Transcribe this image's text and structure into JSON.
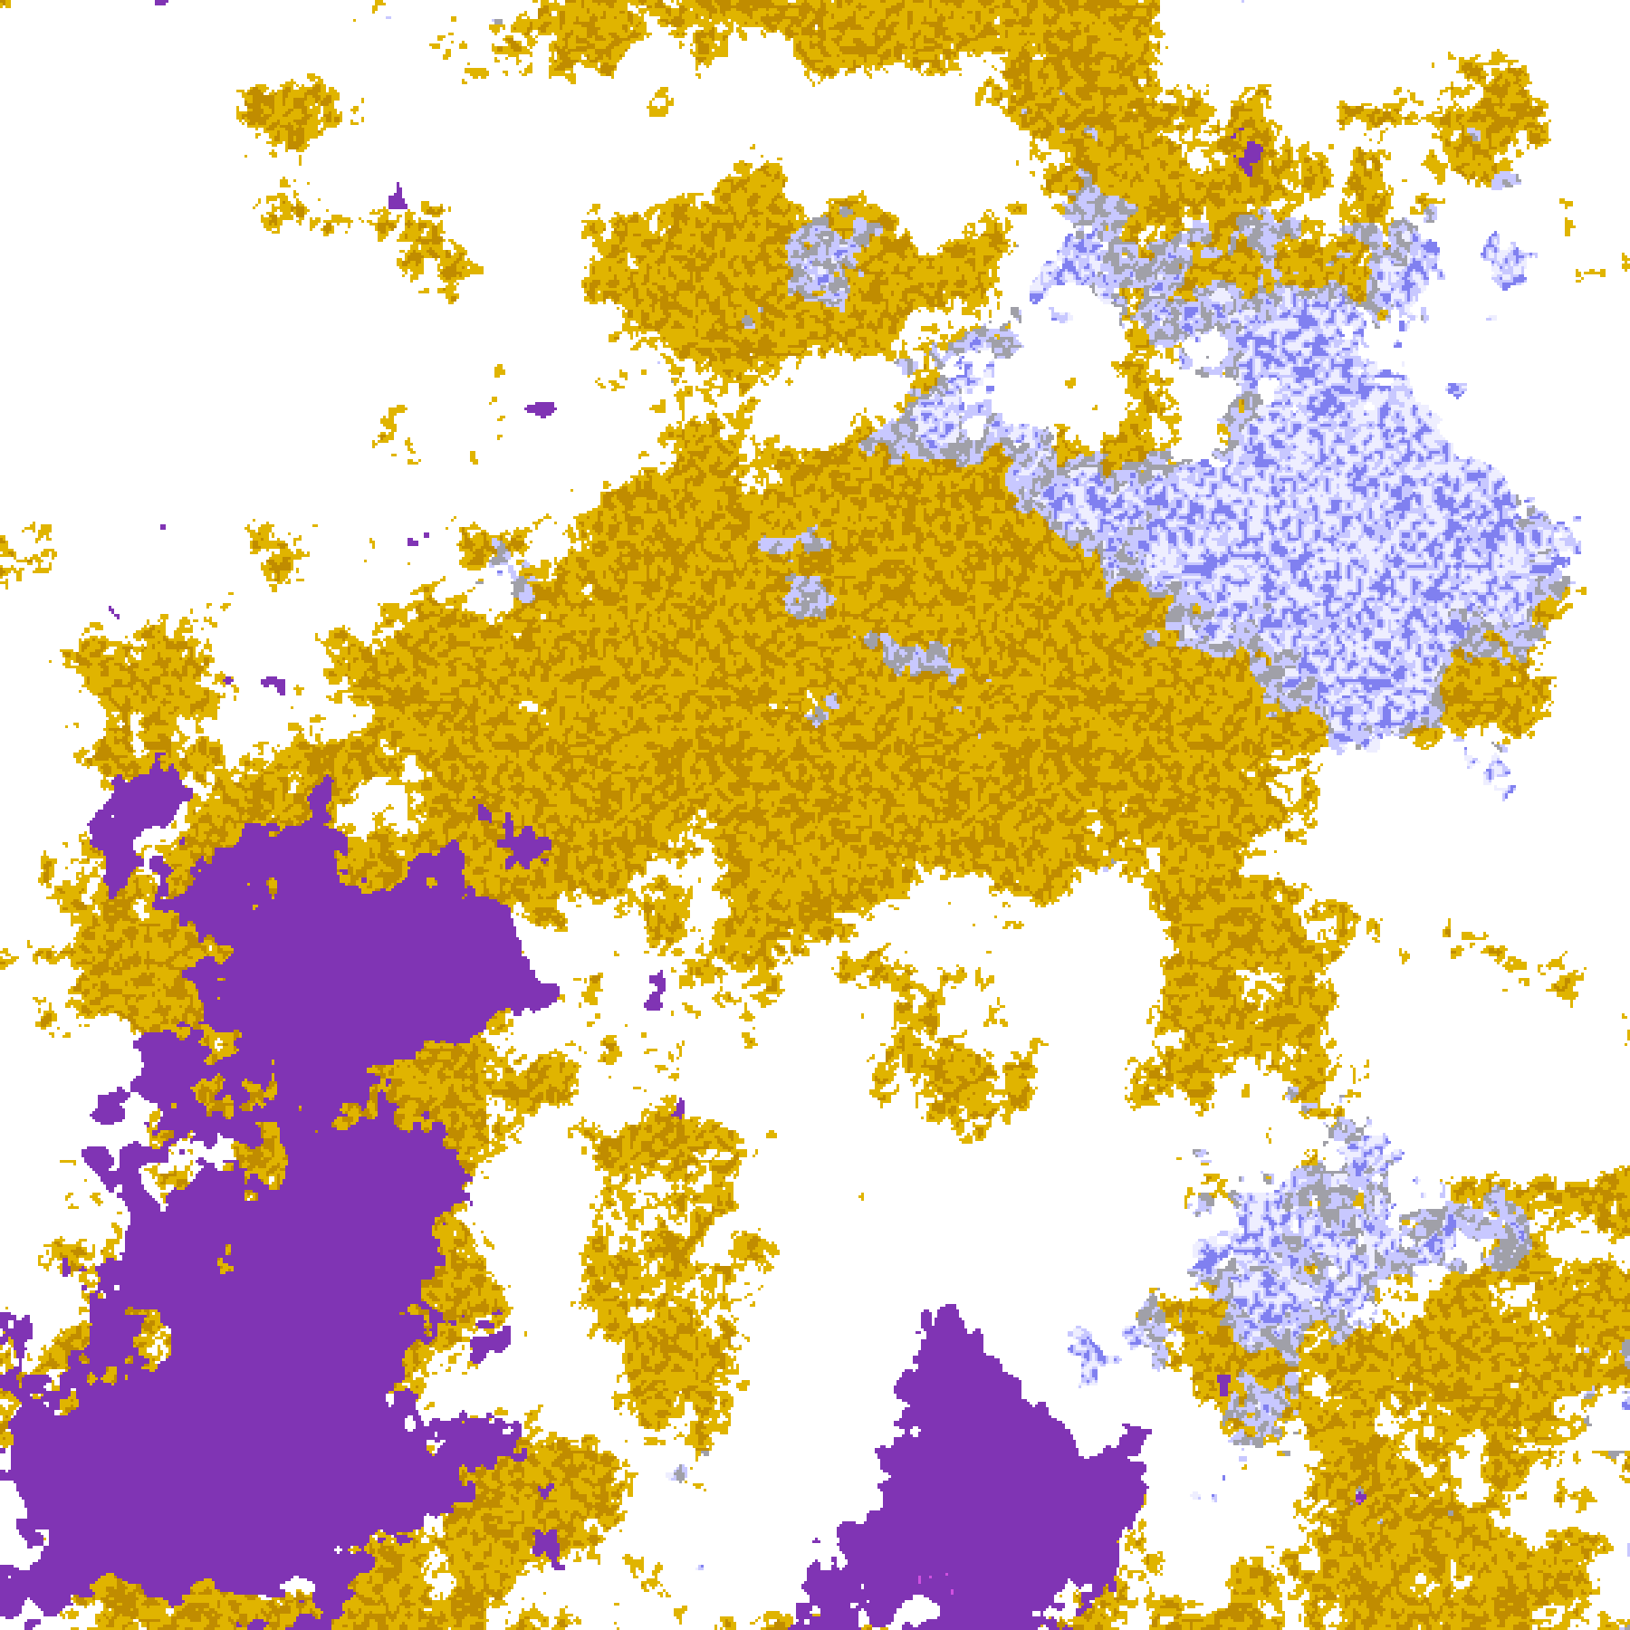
{
  "map": {
    "kind": "classified satellite cloud imagery",
    "legend_visible": false,
    "palette": {
      "clear": "#ffffff",
      "gold": "#e0b400",
      "dark_gold": "#c08c00",
      "gray": "#a0a0a8",
      "lavender": "#c8c8ff",
      "pale_white_blue": "#eeeeff",
      "periwinkle": "#8080f0",
      "purple": "#8034b4",
      "magenta": "#d050e0"
    }
  }
}
